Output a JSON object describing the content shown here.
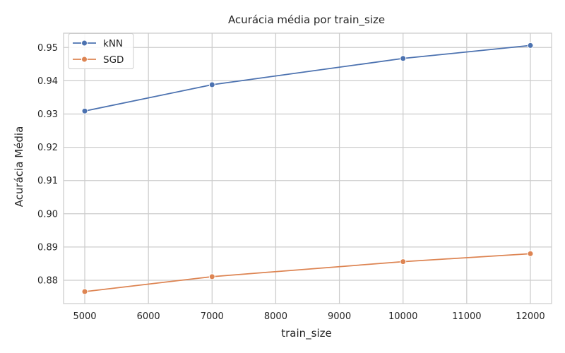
{
  "chart_data": {
    "type": "line",
    "title": "Acurácia média por train_size",
    "xlabel": "train_size",
    "ylabel": "Acurácia Média",
    "x": [
      5000,
      7000,
      10000,
      12000
    ],
    "series": [
      {
        "name": "kNN",
        "color": "#4C72B0",
        "values": [
          0.9309,
          0.9388,
          0.9467,
          0.9506
        ]
      },
      {
        "name": "SGD",
        "color": "#DD8452",
        "values": [
          0.8766,
          0.8811,
          0.8856,
          0.888
        ]
      }
    ],
    "xlim": [
      4667,
      12333
    ],
    "ylim": [
      0.873,
      0.9543
    ],
    "xticks": [
      5000,
      6000,
      7000,
      8000,
      9000,
      10000,
      11000,
      12000
    ],
    "yticks": [
      0.88,
      0.89,
      0.9,
      0.91,
      0.92,
      0.93,
      0.94,
      0.95
    ],
    "ytick_labels": [
      "0.88",
      "0.89",
      "0.90",
      "0.91",
      "0.92",
      "0.93",
      "0.94",
      "0.95"
    ],
    "grid": true,
    "legend": "top-left",
    "markers": "circle"
  }
}
